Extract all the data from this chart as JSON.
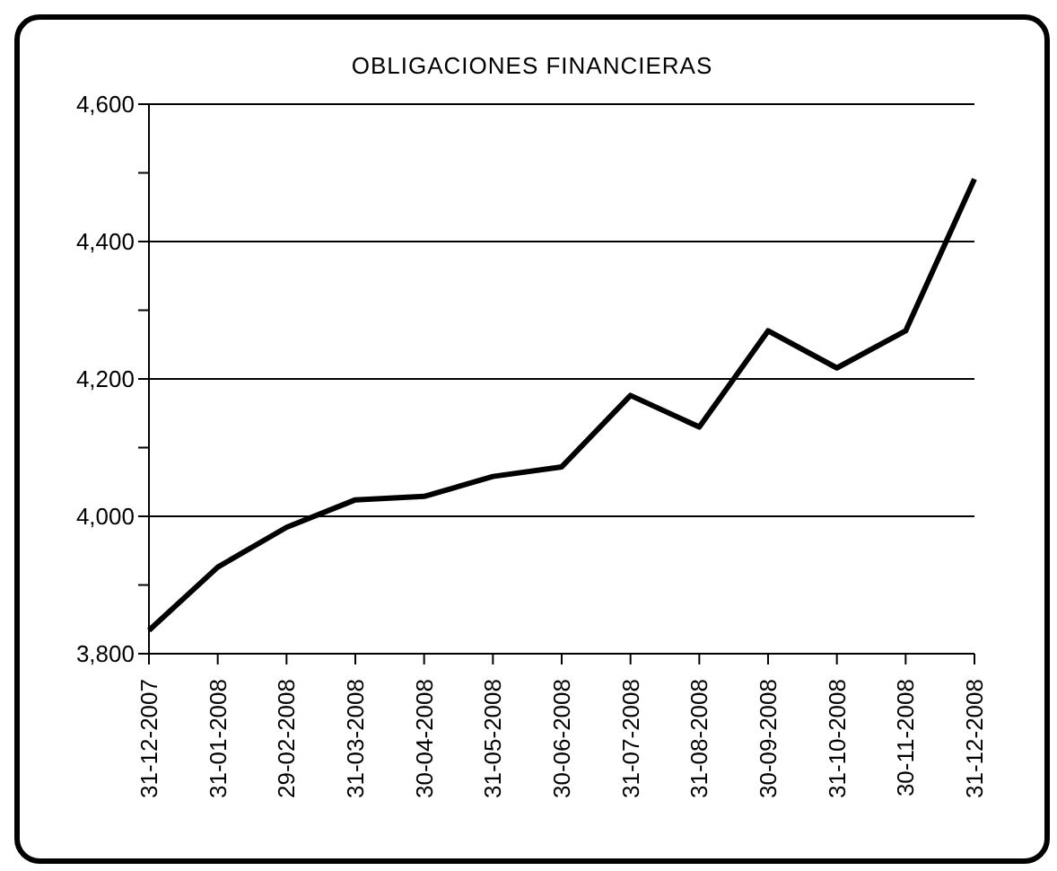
{
  "chart_data": {
    "type": "line",
    "title": "OBLIGACIONES FINANCIERAS",
    "categories": [
      "31-12-2007",
      "31-01-2008",
      "29-02-2008",
      "31-03-2008",
      "30-04-2008",
      "31-05-2008",
      "30-06-2008",
      "31-07-2008",
      "31-08-2008",
      "30-09-2008",
      "31-10-2008",
      "30-11-2008",
      "31-12-2008"
    ],
    "values": [
      3834,
      3926,
      3984,
      4024,
      4029,
      4058,
      4072,
      4176,
      4130,
      4270,
      4216,
      4270,
      4491
    ],
    "color": "#000000",
    "ylim": [
      3800,
      4600
    ],
    "yticks": [
      {
        "value": 3800,
        "label": "3,800"
      },
      {
        "value": 3900,
        "label": null
      },
      {
        "value": 4000,
        "label": "4,000"
      },
      {
        "value": 4100,
        "label": null
      },
      {
        "value": 4200,
        "label": "4,200"
      },
      {
        "value": 4300,
        "label": null
      },
      {
        "value": 4400,
        "label": "4,400"
      },
      {
        "value": 4500,
        "label": null
      },
      {
        "value": 4600,
        "label": "4,600"
      }
    ],
    "grid": "y",
    "marker": "none",
    "line_style": "solid",
    "legend": false
  }
}
